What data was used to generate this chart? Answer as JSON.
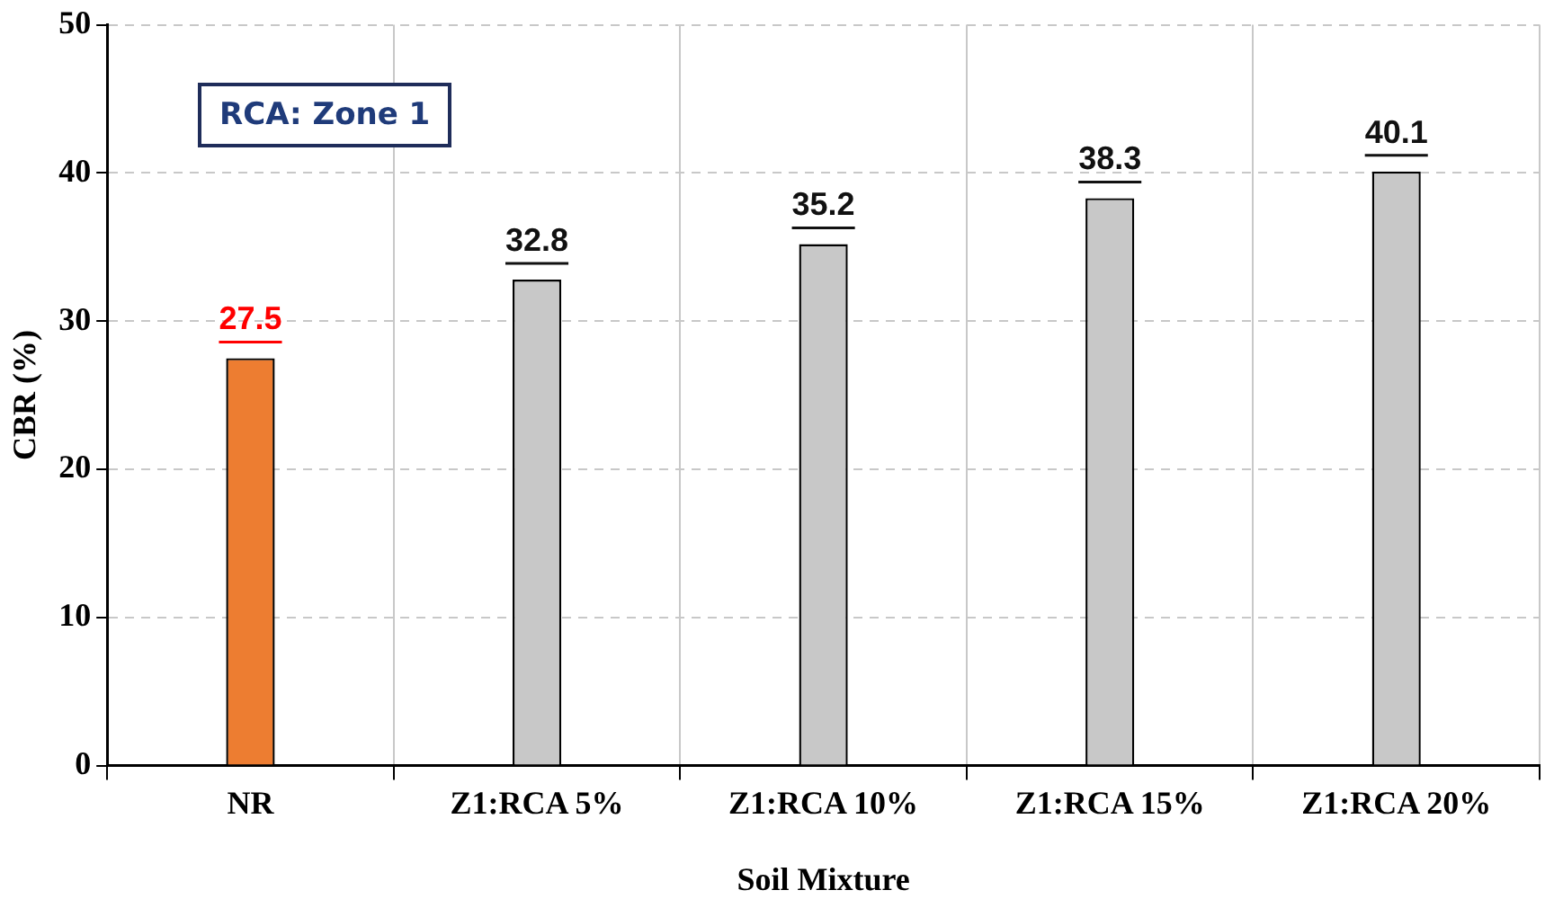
{
  "chart_data": {
    "type": "bar",
    "categories": [
      "NR",
      "Z1:RCA 5%",
      "Z1:RCA 10%",
      "Z1:RCA 15%",
      "Z1:RCA 20%"
    ],
    "values": [
      27.5,
      32.8,
      35.2,
      38.3,
      40.1
    ],
    "colors": [
      "#ed7d31",
      "#c8c8c8",
      "#c8c8c8",
      "#c8c8c8",
      "#c8c8c8"
    ],
    "ylim": [
      0,
      50
    ],
    "yticks": [
      0,
      10,
      20,
      30,
      40,
      50
    ],
    "grid": true,
    "data_labels": true,
    "xlabel": "Soil Mixture",
    "ylabel": "CBR (%)",
    "annotations": [
      "RCA: Zone 1"
    ]
  }
}
